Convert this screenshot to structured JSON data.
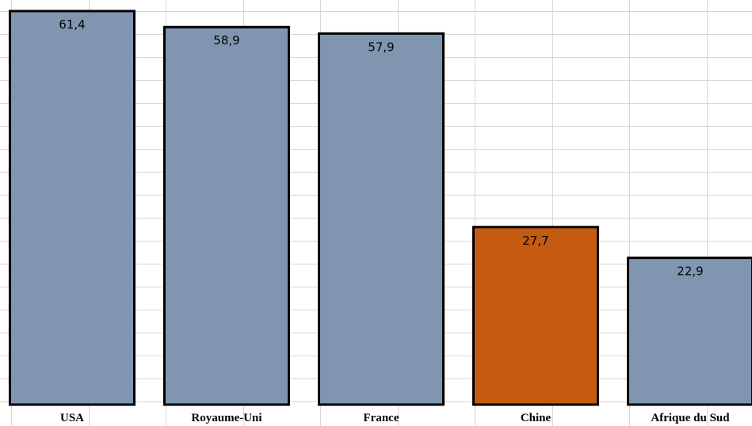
{
  "chart_data": {
    "type": "bar",
    "categories": [
      "USA",
      "Royaume-Uni",
      "France",
      "Chine",
      "Afrique du Sud"
    ],
    "values": [
      61.4,
      58.9,
      57.9,
      27.7,
      22.9
    ],
    "value_labels": [
      "61,4",
      "58,9",
      "57,9",
      "27,7",
      "22,9"
    ],
    "colors": [
      "#8096b0",
      "#8096b0",
      "#8096b0",
      "#c55a11",
      "#8096b0"
    ],
    "highlight_category": "Chine",
    "title": "",
    "xlabel": "",
    "ylabel": "",
    "ylim": [
      0,
      62
    ],
    "grid": true,
    "legend": "none"
  }
}
